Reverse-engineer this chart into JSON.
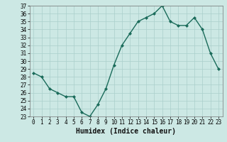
{
  "x": [
    0,
    1,
    2,
    3,
    4,
    5,
    6,
    7,
    8,
    9,
    10,
    11,
    12,
    13,
    14,
    15,
    16,
    17,
    18,
    19,
    20,
    21,
    22,
    23
  ],
  "y": [
    28.5,
    28.0,
    26.5,
    26.0,
    25.5,
    25.5,
    23.5,
    23.0,
    24.5,
    26.5,
    29.5,
    32.0,
    33.5,
    35.0,
    35.5,
    36.0,
    37.0,
    35.0,
    34.5,
    34.5,
    35.5,
    34.0,
    31.0,
    29.0
  ],
  "line_color": "#1a6b5a",
  "marker": "D",
  "marker_size": 2,
  "line_width": 1.0,
  "bg_color": "#cce8e4",
  "grid_color": "#aacfcb",
  "xlabel": "Humidex (Indice chaleur)",
  "xlabel_fontsize": 7,
  "tick_fontsize": 5.5,
  "ylim": [
    23,
    37
  ],
  "xlim": [
    -0.5,
    23.5
  ],
  "yticks": [
    23,
    24,
    25,
    26,
    27,
    28,
    29,
    30,
    31,
    32,
    33,
    34,
    35,
    36,
    37
  ],
  "xticks": [
    0,
    1,
    2,
    3,
    4,
    5,
    6,
    7,
    8,
    9,
    10,
    11,
    12,
    13,
    14,
    15,
    16,
    17,
    18,
    19,
    20,
    21,
    22,
    23
  ]
}
